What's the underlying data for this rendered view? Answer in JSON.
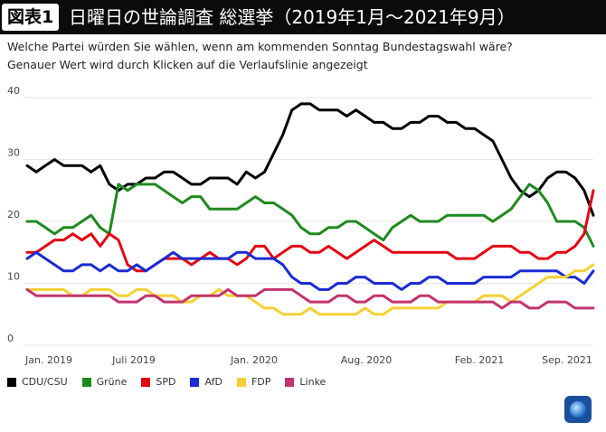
{
  "header": {
    "badge": "図表1",
    "title": "日曜日の世論調査 総選挙（2019年1月〜2021年9月）",
    "subtitle": "Welche Partei würden Sie wählen, wenn am kommenden Sonntag Bundestagswahl wäre?",
    "subtitle2": "Genauer Wert wird durch Klicken auf die Verlaufslinie angezeigt"
  },
  "chart_data": {
    "type": "line",
    "title": "",
    "xlabel": "",
    "ylabel": "",
    "ylim": [
      0,
      40
    ],
    "yticks": [
      "0",
      "10",
      "20",
      "30",
      "40"
    ],
    "xticks": [
      "Jan. 2019",
      "Juli 2019",
      "Jan. 2020",
      "Aug. 2020",
      "Feb. 2021",
      "Sep. 2021"
    ],
    "grid": true,
    "legend_position": "bottom",
    "series": [
      {
        "name": "CDU/CSU",
        "color": "#000000",
        "values": [
          29,
          28,
          29,
          30,
          29,
          29,
          29,
          28,
          29,
          26,
          25,
          26,
          26,
          27,
          27,
          28,
          28,
          27,
          26,
          26,
          27,
          27,
          27,
          26,
          28,
          27,
          28,
          31,
          34,
          38,
          39,
          39,
          38,
          38,
          38,
          37,
          38,
          37,
          36,
          36,
          35,
          35,
          36,
          36,
          37,
          37,
          36,
          36,
          35,
          35,
          34,
          33,
          30,
          27,
          25,
          24,
          25,
          27,
          28,
          28,
          27,
          25,
          21
        ]
      },
      {
        "name": "Grüne",
        "color": "#1e8a1e",
        "values": [
          20,
          20,
          19,
          18,
          19,
          19,
          20,
          21,
          19,
          18,
          26,
          25,
          26,
          26,
          26,
          25,
          24,
          23,
          24,
          24,
          22,
          22,
          22,
          22,
          23,
          24,
          23,
          23,
          22,
          21,
          19,
          18,
          18,
          19,
          19,
          20,
          20,
          19,
          18,
          17,
          19,
          20,
          21,
          20,
          20,
          20,
          21,
          21,
          21,
          21,
          21,
          20,
          21,
          22,
          24,
          26,
          25,
          23,
          20,
          20,
          20,
          19,
          16
        ]
      },
      {
        "name": "SPD",
        "color": "#e30613",
        "values": [
          15,
          15,
          16,
          17,
          17,
          18,
          17,
          18,
          16,
          18,
          17,
          13,
          12,
          12,
          13,
          14,
          14,
          14,
          13,
          14,
          15,
          14,
          14,
          13,
          14,
          16,
          16,
          14,
          15,
          16,
          16,
          15,
          15,
          16,
          15,
          14,
          15,
          16,
          17,
          16,
          15,
          15,
          15,
          15,
          15,
          15,
          15,
          14,
          14,
          14,
          15,
          16,
          16,
          16,
          15,
          15,
          14,
          14,
          15,
          15,
          16,
          18,
          25
        ]
      },
      {
        "name": "AfD",
        "color": "#1a2cd4",
        "values": [
          14,
          15,
          14,
          13,
          12,
          12,
          13,
          13,
          12,
          13,
          12,
          12,
          13,
          12,
          13,
          14,
          15,
          14,
          14,
          14,
          14,
          14,
          14,
          15,
          15,
          14,
          14,
          14,
          13,
          11,
          10,
          10,
          9,
          9,
          10,
          10,
          11,
          11,
          10,
          10,
          10,
          9,
          10,
          10,
          11,
          11,
          10,
          10,
          10,
          10,
          11,
          11,
          11,
          11,
          12,
          12,
          12,
          12,
          12,
          11,
          11,
          10,
          12
        ]
      },
      {
        "name": "FDP",
        "color": "#f5d033",
        "values": [
          9,
          9,
          9,
          9,
          9,
          8,
          8,
          9,
          9,
          9,
          8,
          8,
          9,
          9,
          8,
          8,
          8,
          7,
          7,
          8,
          8,
          9,
          8,
          8,
          8,
          7,
          6,
          6,
          5,
          5,
          5,
          6,
          5,
          5,
          5,
          5,
          5,
          6,
          5,
          5,
          6,
          6,
          6,
          6,
          6,
          6,
          7,
          7,
          7,
          7,
          8,
          8,
          8,
          7,
          8,
          9,
          10,
          11,
          11,
          11,
          12,
          12,
          13
        ]
      },
      {
        "name": "Linke",
        "color": "#c2346e",
        "values": [
          9,
          8,
          8,
          8,
          8,
          8,
          8,
          8,
          8,
          8,
          7,
          7,
          7,
          8,
          8,
          7,
          7,
          7,
          8,
          8,
          8,
          8,
          9,
          8,
          8,
          8,
          9,
          9,
          9,
          9,
          8,
          7,
          7,
          7,
          8,
          8,
          7,
          7,
          8,
          8,
          7,
          7,
          7,
          8,
          8,
          7,
          7,
          7,
          7,
          7,
          7,
          7,
          6,
          7,
          7,
          6,
          6,
          7,
          7,
          7,
          6,
          6,
          6
        ]
      }
    ]
  }
}
